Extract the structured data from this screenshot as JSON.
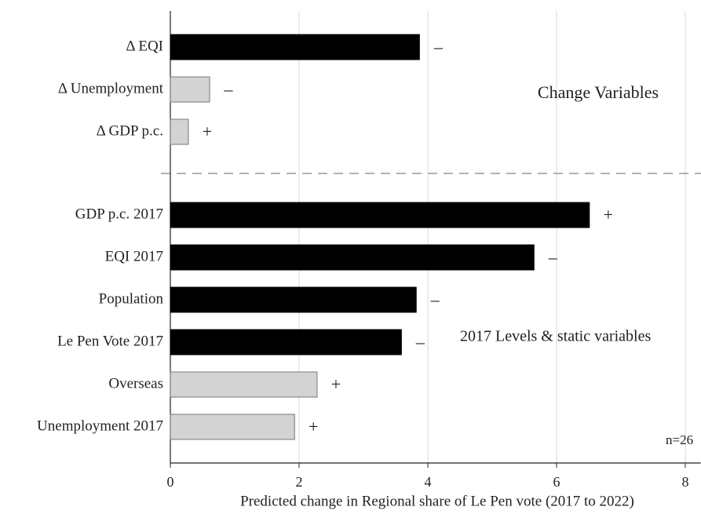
{
  "chart_data": {
    "type": "bar",
    "orientation": "horizontal",
    "categories": [
      "Δ EQI",
      "Δ Unemployment",
      "Δ GDP p.c.",
      "GDP p.c. 2017",
      "EQI 2017",
      "Population",
      "Le Pen Vote 2017",
      "Overseas",
      "Unemployment 2017"
    ],
    "values": [
      3.87,
      0.61,
      0.28,
      6.51,
      5.65,
      3.82,
      3.59,
      2.28,
      1.93
    ],
    "colors": [
      "#000000",
      "#d3d3d3",
      "#d3d3d3",
      "#000000",
      "#000000",
      "#000000",
      "#000000",
      "#d3d3d3",
      "#d3d3d3"
    ],
    "signs": [
      "–",
      "–",
      "+",
      "+",
      "–",
      "–",
      "–",
      "+",
      "+"
    ],
    "xlim": [
      0,
      8.24
    ],
    "xticks": [
      0,
      2,
      4,
      6,
      8
    ],
    "grid": true,
    "xlabel": "Predicted change in Regional share of Le Pen vote (2017 to 2022)",
    "annotations": [
      "Change Variables",
      "2017 Levels & static variables",
      "n=26"
    ]
  }
}
